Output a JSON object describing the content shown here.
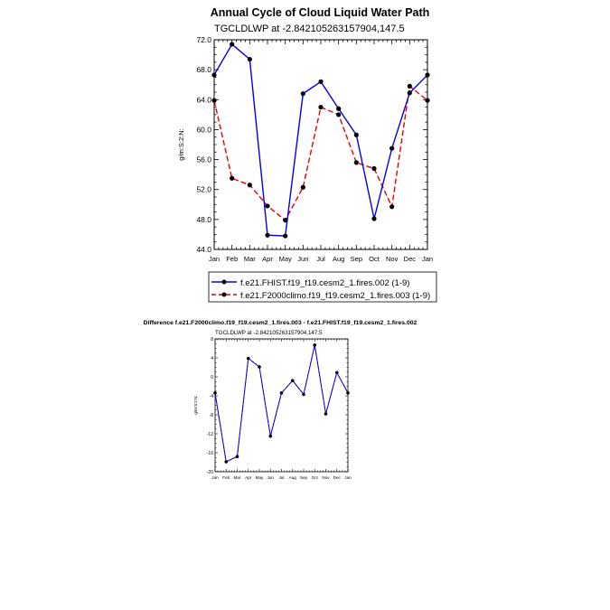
{
  "months": [
    "Jan",
    "Feb",
    "Mar",
    "Apr",
    "May",
    "Jun",
    "Jul",
    "Aug",
    "Sep",
    "Oct",
    "Nov",
    "Dec",
    "Jan"
  ],
  "colors": {
    "blue": "#0000ee",
    "red": "#ee0000",
    "marker": "#000000"
  },
  "chart_data": [
    {
      "type": "line",
      "title": "Annual Cycle of Cloud Liquid Water Path",
      "subtitle": "TGCLDLWP at -2.842105263157904,147.5",
      "ylabel": "g/m:S:2:N:",
      "xlabel": "",
      "ylim": [
        44.0,
        72.0
      ],
      "yticks": [
        "44.0",
        "48.0",
        "52.0",
        "56.0",
        "60.0",
        "64.0",
        "68.0",
        "72.0"
      ],
      "grid": false,
      "legend_position": "bottom",
      "series": [
        {
          "name": "f.e21.FHIST.f19_f19.cesm2_1.fires.002 (1-9)",
          "color": "#0000ee",
          "style": "solid",
          "values": [
            67.3,
            71.4,
            69.4,
            45.9,
            45.8,
            64.8,
            66.4,
            62.8,
            59.3,
            48.1,
            57.5,
            64.9,
            67.3
          ]
        },
        {
          "name": "f.e21.F2000climo.f19_f19.cesm2_1.fires.003 (1-9)",
          "color": "#ee0000",
          "style": "dashed",
          "values": [
            63.9,
            53.5,
            52.6,
            49.8,
            47.9,
            52.3,
            63.0,
            62.0,
            55.6,
            54.8,
            49.7,
            65.8,
            63.9
          ]
        }
      ]
    },
    {
      "type": "line",
      "title": "Difference f.e21.F2000climo.f19_f19.cesm2_1.fires.003 - f.e21.FHIST.f19_f19.cesm2_1.fires.002",
      "subtitle": "TGCLDLWP at -2.842105263157904,147.5",
      "ylabel": "g/m:S:2:N:",
      "xlabel": "",
      "ylim": [
        -20,
        8
      ],
      "yticks": [
        "-20",
        "-16",
        "-12",
        "-8",
        "-4",
        "0",
        "4",
        "8"
      ],
      "grid": false,
      "series": [
        {
          "color": "#0000ee",
          "style": "solid",
          "values": [
            -3.4,
            -17.9,
            -16.8,
            3.9,
            2.1,
            -12.5,
            -3.4,
            -0.8,
            -3.7,
            6.7,
            -7.8,
            0.9,
            -3.4
          ]
        },
        {
          "color": "#ee0000",
          "style": "dashed",
          "values": [
            -3.4,
            -17.9,
            -16.8,
            3.9,
            2.1,
            -12.5,
            -3.4,
            -0.8,
            -3.7,
            6.7,
            -7.8,
            0.9,
            -3.4
          ]
        }
      ]
    }
  ]
}
